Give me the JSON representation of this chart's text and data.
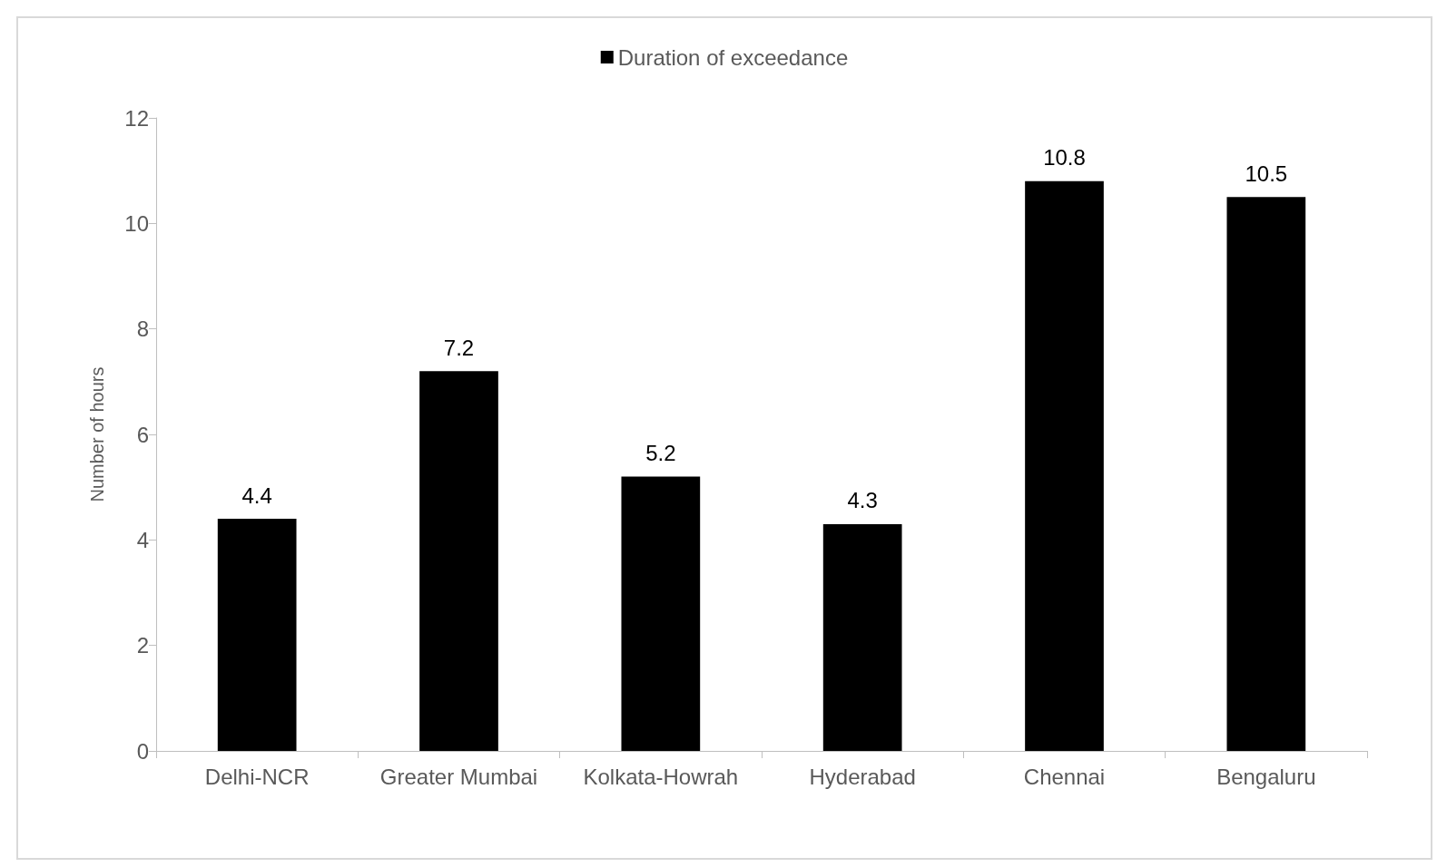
{
  "chart_data": {
    "type": "bar",
    "ylabel": "Number of hours",
    "categories": [
      "Delhi-NCR",
      "Greater Mumbai",
      "Kolkata-Howrah",
      "Hyderabad",
      "Chennai",
      "Bengaluru"
    ],
    "series": [
      {
        "name": "Duration of exceedance",
        "color": "#000000",
        "values": [
          4.4,
          7.2,
          5.2,
          4.3,
          10.8,
          10.5
        ]
      }
    ],
    "ylim": [
      0,
      12
    ],
    "yticks": [
      0,
      2,
      4,
      6,
      8,
      10,
      12
    ],
    "grid": false,
    "legend": "top",
    "data_labels": true
  }
}
